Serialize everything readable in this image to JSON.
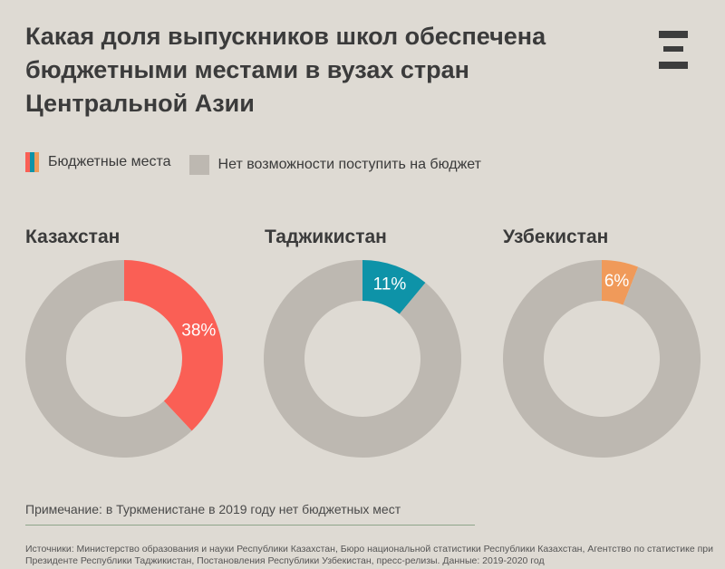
{
  "title": "Какая доля выпускников школ обеспечена бюджетными местами в вузах стран Центральной Азии",
  "logo": "Ξ",
  "legend": {
    "budget": "Бюджетные места",
    "no_budget": "Нет возможности поступить на бюджет"
  },
  "colors": {
    "background": "#dedad3",
    "remainder": "#bdb8b1",
    "kazakhstan": "#fa5f55",
    "tajikistan": "#0e93a8",
    "uzbekistan": "#f09a5a"
  },
  "chart_data": [
    {
      "type": "pie",
      "title": "Казахстан",
      "slices": [
        {
          "name": "Бюджетные места",
          "value": 38,
          "label": "38%"
        },
        {
          "name": "Нет возможности поступить на бюджет",
          "value": 62
        }
      ]
    },
    {
      "type": "pie",
      "title": "Таджикистан",
      "slices": [
        {
          "name": "Бюджетные места",
          "value": 11,
          "label": "11%"
        },
        {
          "name": "Нет возможности поступить на бюджет",
          "value": 89
        }
      ]
    },
    {
      "type": "pie",
      "title": "Узбекистан",
      "slices": [
        {
          "name": "Бюджетные места",
          "value": 6,
          "label": "6%"
        },
        {
          "name": "Нет возможности поступить на бюджет",
          "value": 94
        }
      ]
    }
  ],
  "note": "Примечание: в Туркменистане в 2019 году нет бюджетных мест",
  "sources": "Источники: Министерство образования и науки Республики Казахстан, Бюро национальной статистики Республики Казахстан, Агентство по статистике при Президенте Республики Таджикистан, Постановления Республики Узбекистан, пресс-релизы. Данные: 2019-2020 год"
}
